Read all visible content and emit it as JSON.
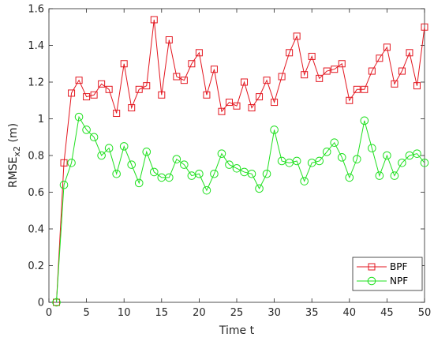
{
  "chart_data": {
    "type": "line",
    "xlabel": "Time t",
    "ylabel_main": "RMSE",
    "ylabel_sub": "x2",
    "ylabel_unit": " (m)",
    "xlim": [
      0,
      50
    ],
    "ylim": [
      0,
      1.6
    ],
    "xticks": [
      0,
      5,
      10,
      15,
      20,
      25,
      30,
      35,
      40,
      45,
      50
    ],
    "yticks": [
      0,
      0.2,
      0.4,
      0.6,
      0.8,
      1,
      1.2,
      1.4,
      1.6
    ],
    "ytick_labels": [
      "0",
      "0.2",
      "0.4",
      "0.6",
      "0.8",
      "1",
      "1.2",
      "1.4",
      "1.6"
    ],
    "grid": false,
    "legend_position": "bottom-right",
    "x": [
      1,
      2,
      3,
      4,
      5,
      6,
      7,
      8,
      9,
      10,
      11,
      12,
      13,
      14,
      15,
      16,
      17,
      18,
      19,
      20,
      21,
      22,
      23,
      24,
      25,
      26,
      27,
      28,
      29,
      30,
      31,
      32,
      33,
      34,
      35,
      36,
      37,
      38,
      39,
      40,
      41,
      42,
      43,
      44,
      45,
      46,
      47,
      48,
      49,
      50
    ],
    "series": [
      {
        "name": "BPF",
        "color": "#e3161f",
        "marker": "square",
        "values": [
          0,
          0.76,
          1.14,
          1.21,
          1.12,
          1.13,
          1.19,
          1.16,
          1.03,
          1.3,
          1.06,
          1.16,
          1.18,
          1.54,
          1.13,
          1.43,
          1.23,
          1.21,
          1.3,
          1.36,
          1.13,
          1.27,
          1.04,
          1.09,
          1.07,
          1.2,
          1.06,
          1.12,
          1.21,
          1.09,
          1.23,
          1.36,
          1.45,
          1.24,
          1.34,
          1.22,
          1.26,
          1.27,
          1.3,
          1.1,
          1.16,
          1.16,
          1.26,
          1.33,
          1.39,
          1.19,
          1.26,
          1.36,
          1.18,
          1.5
        ]
      },
      {
        "name": "NPF",
        "color": "#1fe01f",
        "marker": "circle",
        "values": [
          0,
          0.64,
          0.76,
          1.01,
          0.94,
          0.9,
          0.8,
          0.84,
          0.7,
          0.85,
          0.75,
          0.65,
          0.82,
          0.71,
          0.68,
          0.68,
          0.78,
          0.75,
          0.69,
          0.7,
          0.61,
          0.7,
          0.81,
          0.75,
          0.73,
          0.71,
          0.7,
          0.62,
          0.7,
          0.94,
          0.77,
          0.76,
          0.77,
          0.66,
          0.76,
          0.77,
          0.82,
          0.87,
          0.79,
          0.68,
          0.78,
          0.99,
          0.84,
          0.69,
          0.8,
          0.69,
          0.76,
          0.8,
          0.81,
          0.76
        ]
      }
    ]
  }
}
